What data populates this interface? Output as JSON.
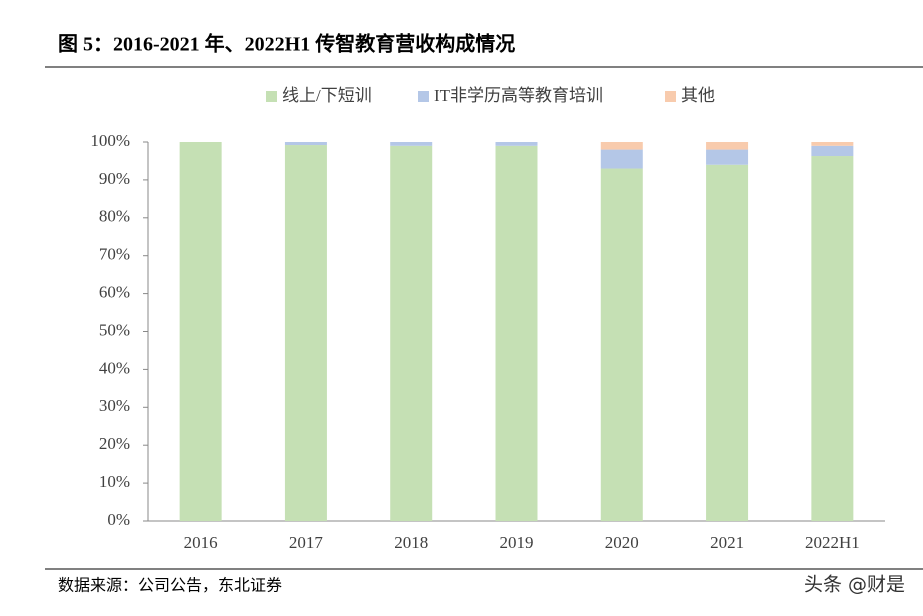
{
  "title": "图 5：2016-2021 年、2022H1 传智教育营收构成情况",
  "source": "数据来源：公司公告，东北证券",
  "watermark": "头条 @财是",
  "chart_data": {
    "type": "stacked-bar",
    "categories": [
      "2016",
      "2017",
      "2018",
      "2019",
      "2020",
      "2021",
      "2022H1"
    ],
    "series": [
      {
        "name": "线上/下短训",
        "color": "#c5e0b4",
        "values": [
          100,
          99.2,
          99,
          99,
          93,
          94,
          96.3
        ]
      },
      {
        "name": "IT非学历高等教育培训",
        "color": "#b4c7e7",
        "values": [
          0,
          0.8,
          1,
          1,
          5,
          4,
          2.7
        ]
      },
      {
        "name": "其他",
        "color": "#f8cbad",
        "values": [
          0,
          0,
          0,
          0,
          2,
          2,
          1
        ]
      }
    ],
    "ylim": [
      0,
      100
    ],
    "yticks": [
      {
        "value": 0,
        "label": "0%"
      },
      {
        "value": 10,
        "label": "10%"
      },
      {
        "value": 20,
        "label": "20%"
      },
      {
        "value": 30,
        "label": "30%"
      },
      {
        "value": 40,
        "label": "40%"
      },
      {
        "value": 50,
        "label": "50%"
      },
      {
        "value": 60,
        "label": "60%"
      },
      {
        "value": 70,
        "label": "70%"
      },
      {
        "value": 80,
        "label": "80%"
      },
      {
        "value": 90,
        "label": "90%"
      },
      {
        "value": 100,
        "label": "100%"
      }
    ],
    "legend": "top"
  }
}
